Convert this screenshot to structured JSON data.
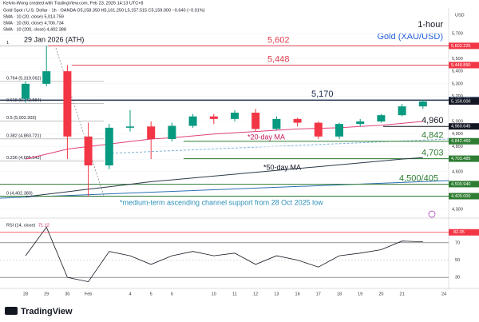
{
  "header": {
    "credit": "Kelvin-Wong created with TradingView.com, Feb 23, 2026 14:13 UTC+8",
    "legend": [
      "Gold Spot / U.S. Dollar · 1h · OANDA  O5,158.350 H5,161.250 L5,157.515 C5,159.000 −0.640 (−0.01%)",
      "SMA · 10 (20, close)  5,013.759",
      "SMA · 10 (50, close)  4,706.734",
      "SMA · 10 (200, close)  4,402.388"
    ],
    "brand": "TradingView"
  },
  "chart_data": [
    {
      "type": "candlestick",
      "title": "Gold (XAU/USD)",
      "subtitle": "1-hour",
      "axis_unit": "USD",
      "categories": [
        "28",
        "29",
        "30",
        "Feb",
        null,
        "4",
        "5",
        "6",
        null,
        "10",
        "11",
        "12",
        "13",
        "16",
        "17",
        "18",
        "19",
        "20",
        "21",
        null,
        "24"
      ],
      "open": [
        5180,
        5300,
        5400,
        4880,
        4650,
        4950,
        4960,
        4860,
        4965,
        5040,
        5020,
        5070,
        4940,
        5020,
        4990,
        4880,
        4980,
        5000,
        5050,
        5120,
        null
      ],
      "high": [
        5320,
        5602,
        5450,
        4990,
        4980,
        5090,
        5000,
        4990,
        5060,
        5060,
        5090,
        5100,
        5040,
        5030,
        5000,
        4990,
        5020,
        5060,
        5140,
        5175,
        null
      ],
      "low": [
        5150,
        5280,
        4700,
        4402,
        4620,
        4920,
        4700,
        4840,
        4950,
        4980,
        5000,
        4920,
        4930,
        4960,
        4860,
        4860,
        4960,
        4990,
        5040,
        5100,
        null
      ],
      "close": [
        5300,
        5400,
        4880,
        4650,
        4950,
        4960,
        4860,
        4965,
        5040,
        5020,
        5070,
        4940,
        5020,
        4990,
        4880,
        4980,
        5000,
        5050,
        5120,
        5159,
        null
      ],
      "up_color": "#089981",
      "down_color": "#f23645",
      "series": [
        {
          "name": "*20-day MA",
          "color": "#e0407a",
          "values": [
            4700,
            4740,
            4780,
            4800,
            4820,
            4840,
            4860,
            4870,
            4885,
            4900,
            4910,
            4920,
            4930,
            4940,
            4945,
            4950,
            4960,
            4970,
            4985,
            5000,
            null
          ]
        },
        {
          "name": "*50-day MA",
          "color": "#2a3a4a",
          "values": [
            4400,
            4420,
            4440,
            4460,
            4480,
            4500,
            4520,
            4535,
            4550,
            4565,
            4580,
            4595,
            4610,
            4625,
            4640,
            4655,
            4670,
            4685,
            4700,
            4712,
            null
          ]
        }
      ],
      "ylim": [
        4249,
        5872
      ],
      "yticks": [
        {
          "value": 4300,
          "label": "4,300"
        },
        {
          "value": 4400,
          "label": "4,400"
        },
        {
          "value": 4500,
          "label": "4,500"
        },
        {
          "value": 4600,
          "label": "4,600"
        },
        {
          "value": 4700,
          "label": "4,700"
        },
        {
          "value": 4800,
          "label": "4,800"
        },
        {
          "value": 4900,
          "label": "4,900"
        },
        {
          "value": 5000,
          "label": "5,000"
        },
        {
          "value": 5200,
          "label": "5,200"
        },
        {
          "value": 5300,
          "label": "5,300"
        },
        {
          "value": 5400,
          "label": "5,400"
        },
        {
          "value": 5500,
          "label": "5,500"
        },
        {
          "value": 5700,
          "label": "5,700"
        }
      ],
      "levels": [
        {
          "value": 5602,
          "label": "5,602",
          "color": "#e04050"
        },
        {
          "value": 5448,
          "label": "5,448",
          "color": "#e04050"
        },
        {
          "value": 5170,
          "label": "5,170",
          "color": "#1a2a4a"
        },
        {
          "value": 4960,
          "label": "4,960",
          "color": "#131722"
        },
        {
          "value": 4842,
          "label": "4,842",
          "color": "#2e7d32"
        },
        {
          "value": 4703,
          "label": "4,703",
          "color": "#2e7d32"
        },
        {
          "value": 4500,
          "to": 4405,
          "label": "4,500/405",
          "color": "#2e7d32"
        }
      ],
      "fib": [
        {
          "value": 5602.225,
          "label": "1"
        },
        {
          "value": 5319.062,
          "label": "0.764 (5,319.062)"
        },
        {
          "value": 5143.884,
          "label": "0.618 (5,143.884)"
        },
        {
          "value": 5002.303,
          "label": "0.5 (5,002.303)"
        },
        {
          "value": 4860.721,
          "label": "0.382 (4,860.721)"
        },
        {
          "value": 4685.543,
          "label": "0.236 (4,685.543)"
        },
        {
          "value": 4402.38,
          "label": "0 (4,402.380)"
        }
      ],
      "price_tags": [
        {
          "value": 5602.225,
          "label": "5,602.225",
          "color": "#f23645"
        },
        {
          "value": 5448.89,
          "label": "5,448.890",
          "color": "#f23645"
        },
        {
          "value": 5170.13,
          "label": "5,170.130",
          "color": "#1a2a4a"
        },
        {
          "value": 5159.0,
          "label": "5,159.000",
          "color": "#131722"
        },
        {
          "value": 4960.645,
          "label": "4,960.645",
          "color": "#131722"
        },
        {
          "value": 4842.46,
          "label": "4,842.460",
          "color": "#2e7d32"
        },
        {
          "value": 4703.485,
          "label": "4,703.485",
          "color": "#2e7d32"
        },
        {
          "value": 4500.94,
          "label": "4,500.940",
          "color": "#2e7d32"
        },
        {
          "value": 4405.0,
          "label": "4,405.000",
          "color": "#2e7d32"
        }
      ],
      "ath_label": "29 Jan 2026 (ATH)",
      "channel_label": "*medium-term ascending channel support from 28 Oct 2025 low"
    },
    {
      "type": "line",
      "title": "RSI (14, close)",
      "last_value_label": "71.12",
      "categories": [
        "28",
        "29",
        "30",
        "Feb",
        null,
        "4",
        "5",
        "6",
        null,
        "10",
        "11",
        "12",
        "13",
        "16",
        "17",
        "18",
        "19",
        "20",
        "21",
        null,
        "24"
      ],
      "series": [
        {
          "name": "RSI",
          "color": "#131722",
          "values": [
            55,
            88,
            30,
            25,
            60,
            55,
            45,
            55,
            60,
            55,
            58,
            45,
            55,
            50,
            42,
            55,
            58,
            62,
            72,
            71.12,
            null
          ]
        }
      ],
      "ylim": [
        20,
        92
      ],
      "yticks": [
        30,
        50,
        70
      ],
      "overbought_tag": {
        "value": 82.05,
        "label": "82.05"
      }
    }
  ]
}
